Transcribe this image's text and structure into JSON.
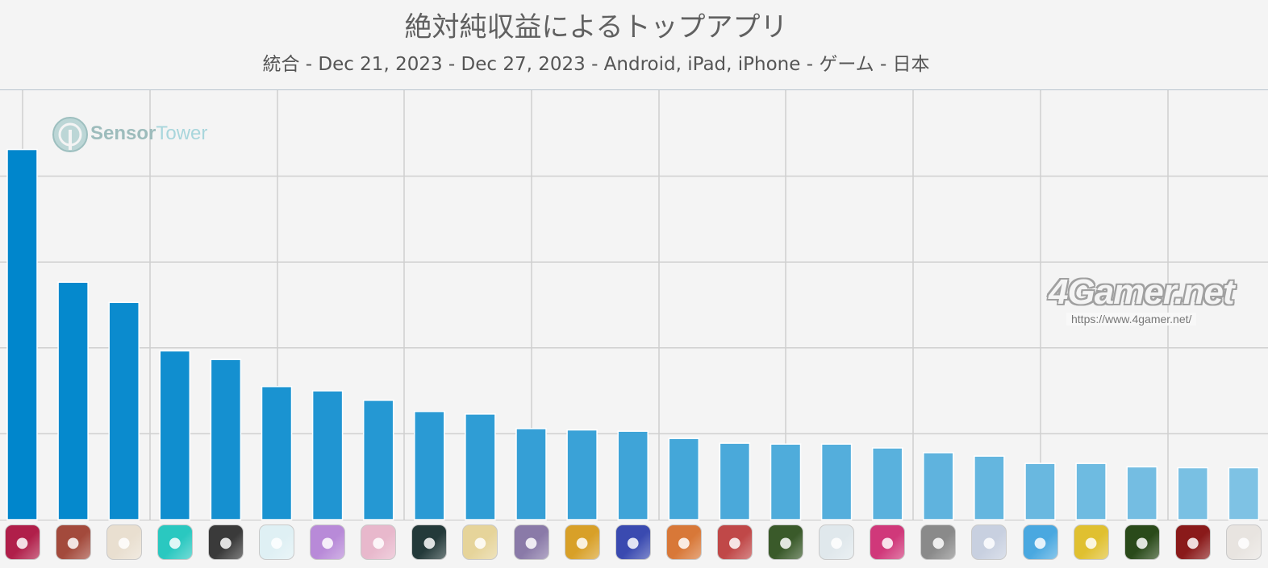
{
  "chart_data": {
    "type": "bar",
    "title": "絶対純収益によるトップアプリ",
    "subtitle": "統合 - Dec 21, 2023 - Dec 27, 2023 - Android, iPad, iPhone - ゲーム - 日本",
    "ylim": [
      0,
      100
    ],
    "grid": true,
    "values": [
      86.2,
      55.3,
      50.6,
      39.3,
      37.3,
      31.0,
      30.0,
      27.8,
      25.2,
      24.6,
      21.2,
      20.9,
      20.6,
      18.9,
      17.8,
      17.6,
      17.6,
      16.7,
      15.6,
      14.8,
      13.1,
      13.1,
      12.3,
      12.1,
      12.1
    ],
    "app_icons": [
      {
        "icon": "dragon-game-icon",
        "color": "#b01f4a"
      },
      {
        "icon": "anime-hero-icon",
        "color": "#a34a3c"
      },
      {
        "icon": "genshin-character-icon",
        "color": "#e9dfd0"
      },
      {
        "icon": "slime-icon",
        "color": "#2ac8c0"
      },
      {
        "icon": "baseball-team-icon",
        "color": "#3a3a3a"
      },
      {
        "icon": "soccer-mascot-icon",
        "color": "#dff0f4"
      },
      {
        "icon": "horse-girl-icon",
        "color": "#b88ad8"
      },
      {
        "icon": "anime-girl-pink-icon",
        "color": "#e8b8cc"
      },
      {
        "icon": "now-badge-icon",
        "color": "#243a3a"
      },
      {
        "icon": "knight-girl-icon",
        "color": "#e6d49a"
      },
      {
        "icon": "puzzle-characters-icon",
        "color": "#8a7aa8"
      },
      {
        "icon": "fighter-gold-icon",
        "color": "#d8a028"
      },
      {
        "icon": "royale-king-icon",
        "color": "#3a4ab0"
      },
      {
        "icon": "pirate-crew-icon",
        "color": "#d87838"
      },
      {
        "icon": "red-hair-girl-icon",
        "color": "#c04848"
      },
      {
        "icon": "pixel-heroes-icon",
        "color": "#3a5a2a"
      },
      {
        "icon": "pokeball-icon",
        "color": "#e0e8ec"
      },
      {
        "icon": "music-idol-icon",
        "color": "#d0387a"
      },
      {
        "icon": "mecha-icon",
        "color": "#8a8a8a"
      },
      {
        "icon": "silver-hair-girl-icon",
        "color": "#c8d0e0"
      },
      {
        "icon": "blue-idol-icon",
        "color": "#4aa8e0"
      },
      {
        "icon": "baseball-player-icon",
        "color": "#e0c030"
      },
      {
        "icon": "monster-collection-icon",
        "color": "#2a4a1a"
      },
      {
        "icon": "three-kingdoms-icon",
        "color": "#8a1a1a"
      },
      {
        "icon": "white-hair-girl-icon",
        "color": "#e8e4e0"
      }
    ]
  },
  "watermarks": {
    "sensor_main": "Sensor",
    "sensor_tail": "Tower",
    "g4_brand": "4Gamer.net",
    "g4_url": "https://www.4gamer.net/"
  }
}
